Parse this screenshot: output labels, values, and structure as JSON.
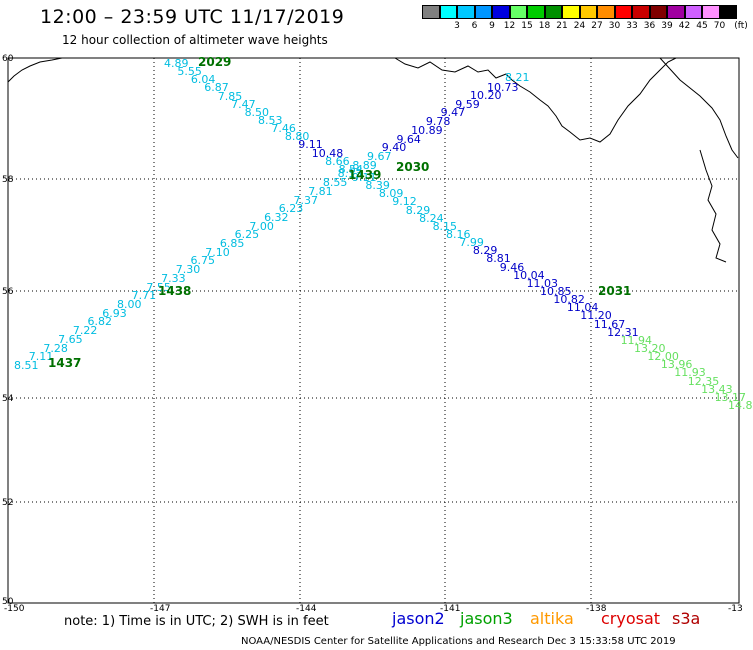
{
  "header": {
    "title": "12:00 – 23:59 UTC 11/17/2019",
    "subtitle": "12 hour collection of altimeter wave heights"
  },
  "legend": {
    "unit": "(ft)",
    "bins": [
      {
        "color": "#808080",
        "label": ""
      },
      {
        "color": "#00ffff",
        "label": "3"
      },
      {
        "color": "#00c8ff",
        "label": "6"
      },
      {
        "color": "#0096ff",
        "label": "9"
      },
      {
        "color": "#0000e0",
        "label": "12"
      },
      {
        "color": "#66ff66",
        "label": "15"
      },
      {
        "color": "#00cc00",
        "label": "18"
      },
      {
        "color": "#009000",
        "label": "21"
      },
      {
        "color": "#ffff00",
        "label": "24"
      },
      {
        "color": "#ffc800",
        "label": "27"
      },
      {
        "color": "#ff8c00",
        "label": "30"
      },
      {
        "color": "#ff0000",
        "label": "33"
      },
      {
        "color": "#c80000",
        "label": "36"
      },
      {
        "color": "#800000",
        "label": "39"
      },
      {
        "color": "#a000a0",
        "label": "42"
      },
      {
        "color": "#d060ff",
        "label": "45"
      },
      {
        "color": "#ff90ff",
        "label": "70"
      },
      {
        "color": "#000000",
        "label": ""
      }
    ]
  },
  "map": {
    "lon_range": [
      -150,
      -135
    ],
    "lat_range": [
      50,
      60
    ],
    "lon_ticks": [
      "-150",
      "-147",
      "-144",
      "-141",
      "-138",
      "-13"
    ],
    "lat_ticks": [
      "60",
      "58",
      "56",
      "54",
      "52",
      "50"
    ]
  },
  "tracks": {
    "track_a": {
      "colors": [
        "#00bde0",
        "#00bde0",
        "#00bde0",
        "#00bde0",
        "#00bde0",
        "#00bde0",
        "#00bde0",
        "#00bde0",
        "#00bde0",
        "#00bde0",
        "#00bde0",
        "#00bde0",
        "#00bde0",
        "#00bde0",
        "#00bde0",
        "#00bde0",
        "#00bde0",
        "#00bde0",
        "#00bde0",
        "#00bde0",
        "#00bde0",
        "#00bde0",
        "#00bde0",
        "#00bde0",
        "#00bde0",
        "#0000c8",
        "#0000c8",
        "#0000c8",
        "#0000c8",
        "#0000c8",
        "#0000c8",
        "#0000c8"
      ],
      "labels": [
        "8.51",
        "7.11",
        "7.28",
        "7.65",
        "7.22",
        "6.82",
        "6.93",
        "8.00",
        "7.71",
        "7.55",
        "7.33",
        "7.30",
        "6.75",
        "7.10",
        "6.85",
        "6.25",
        "7.00",
        "6.32",
        "6.23",
        "7.37",
        "7.81",
        "8.55",
        "8.13",
        "8.89",
        "9.67",
        "9.40",
        "9.64",
        "10.89",
        "9.78",
        "9.47",
        "9.59",
        "10.20"
      ]
    },
    "track_b": {
      "colors": [
        "#00bde0",
        "#00bde0",
        "#00bde0",
        "#00bde0",
        "#00bde0",
        "#00bde0",
        "#00bde0",
        "#00bde0",
        "#00bde0",
        "#00bde0",
        "#0000c8",
        "#0000c8",
        "#00bde0",
        "#00bde0",
        "#00bde0",
        "#00bde0",
        "#00bde0",
        "#00bde0",
        "#00bde0",
        "#00bde0",
        "#00bde0",
        "#00bde0",
        "#00bde0",
        "#0000c8",
        "#0000c8",
        "#0000c8",
        "#0000c8",
        "#0000c8",
        "#0000c8",
        "#0000c8",
        "#0000c8",
        "#0000c8",
        "#0000c8",
        "#0000c8",
        "#66e060",
        "#66e060",
        "#66e060",
        "#66e060",
        "#66e060",
        "#66e060",
        "#66e060",
        "#66e060",
        "#66e060"
      ],
      "labels": [
        "4.89",
        "5.55",
        "6.04",
        "6.87",
        "7.85",
        "7.47",
        "8.50",
        "8.53",
        "7.46",
        "8.80",
        "9.11",
        "10.48",
        "8.66",
        "8.54",
        "9.11",
        "8.39",
        "8.09",
        "9.12",
        "8.29",
        "8.24",
        "8.15",
        "8.16",
        "7.99",
        "8.29",
        "8.81",
        "9.46",
        "10.04",
        "11.03",
        "10.85",
        "10.82",
        "11.04",
        "11.20",
        "11.67",
        "12.31",
        "11.94",
        "13.20",
        "12.00",
        "13.96",
        "11.93",
        "12.35",
        "13.43",
        "13.17",
        "14.8"
      ]
    },
    "ne_extra": {
      "labels": [
        "10.73",
        "8.21"
      ]
    }
  },
  "time_labels": [
    "2029",
    "2030",
    "1439",
    "1438",
    "1437",
    "2031"
  ],
  "footer": {
    "note": "note:  1) Time is in UTC;  2) SWH is in feet",
    "satellites": [
      {
        "name": "jason2",
        "color": "#0000d0"
      },
      {
        "name": "jason3",
        "color": "#00a000"
      },
      {
        "name": "altika",
        "color": "#ff9900"
      },
      {
        "name": "cryosat",
        "color": "#dd0000"
      },
      {
        "name": "s3a",
        "color": "#b00000"
      }
    ],
    "credit": "NOAA/NESDIS Center for Satellite Applications and Research   Dec  3 15:33:58 UTC 2019"
  }
}
